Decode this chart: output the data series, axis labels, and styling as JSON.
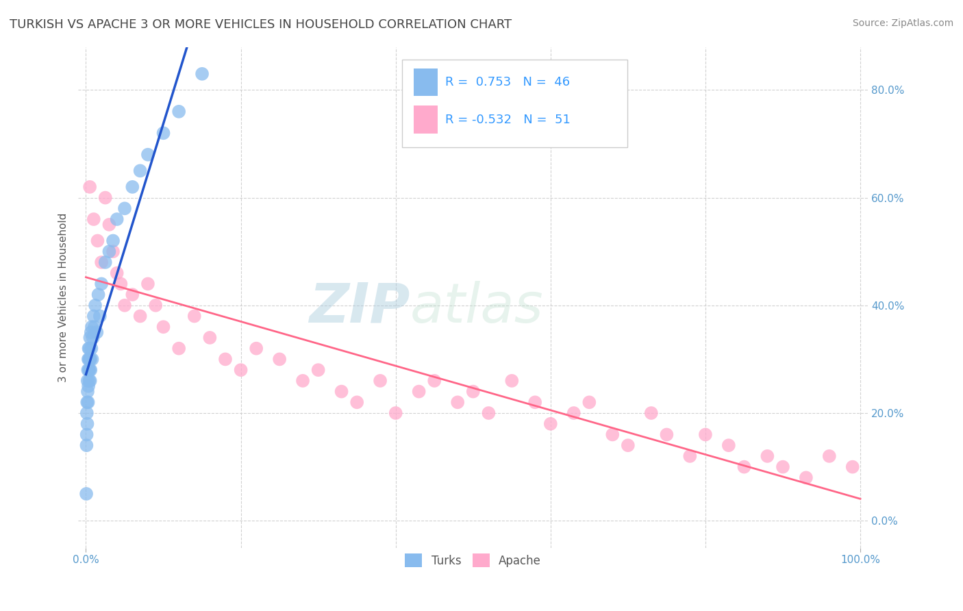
{
  "title": "TURKISH VS APACHE 3 OR MORE VEHICLES IN HOUSEHOLD CORRELATION CHART",
  "source_text": "Source: ZipAtlas.com",
  "ylabel": "3 or more Vehicles in Household",
  "xlim": [
    -1.0,
    101.0
  ],
  "ylim": [
    -5.0,
    88.0
  ],
  "xticks": [
    0.0,
    100.0
  ],
  "yticks": [
    0.0,
    20.0,
    40.0,
    60.0,
    80.0
  ],
  "xticklabels": [
    "0.0%",
    "100.0%"
  ],
  "yticklabels": [
    "0.0%",
    "20.0%",
    "40.0%",
    "60.0%",
    "80.0%"
  ],
  "turks_color": "#88BBEE",
  "apache_color": "#FFAACC",
  "turks_line_color": "#2255CC",
  "apache_line_color": "#FF6688",
  "turks_R": 0.753,
  "turks_N": 46,
  "apache_R": -0.532,
  "apache_N": 51,
  "legend_label_turks": "Turks",
  "legend_label_apache": "Apache",
  "watermark_zip": "ZIP",
  "watermark_atlas": "atlas",
  "background_color": "#ffffff",
  "grid_color": "#cccccc",
  "title_color": "#444444",
  "axis_label_color": "#555555",
  "tick_color": "#5599CC",
  "legend_R_color": "#3399FF",
  "turks_x": [
    0.05,
    0.08,
    0.1,
    0.12,
    0.15,
    0.18,
    0.2,
    0.22,
    0.25,
    0.28,
    0.3,
    0.32,
    0.35,
    0.38,
    0.4,
    0.42,
    0.45,
    0.48,
    0.5,
    0.52,
    0.55,
    0.58,
    0.6,
    0.65,
    0.7,
    0.75,
    0.8,
    0.9,
    1.0,
    1.1,
    1.2,
    1.4,
    1.6,
    1.8,
    2.0,
    2.5,
    3.0,
    3.5,
    4.0,
    5.0,
    6.0,
    7.0,
    8.0,
    10.0,
    12.0,
    15.0
  ],
  "turks_y": [
    5.0,
    14.0,
    16.0,
    20.0,
    22.0,
    18.0,
    26.0,
    24.0,
    28.0,
    22.0,
    30.0,
    25.0,
    32.0,
    28.0,
    30.0,
    26.0,
    32.0,
    28.0,
    30.0,
    34.0,
    26.0,
    30.0,
    28.0,
    35.0,
    32.0,
    36.0,
    30.0,
    34.0,
    38.0,
    36.0,
    40.0,
    35.0,
    42.0,
    38.0,
    44.0,
    48.0,
    50.0,
    52.0,
    56.0,
    58.0,
    62.0,
    65.0,
    68.0,
    72.0,
    76.0,
    83.0
  ],
  "apache_x": [
    0.5,
    1.0,
    1.5,
    2.0,
    2.5,
    3.0,
    3.5,
    4.0,
    4.5,
    5.0,
    6.0,
    7.0,
    8.0,
    9.0,
    10.0,
    12.0,
    14.0,
    16.0,
    18.0,
    20.0,
    22.0,
    25.0,
    28.0,
    30.0,
    33.0,
    35.0,
    38.0,
    40.0,
    43.0,
    45.0,
    48.0,
    50.0,
    52.0,
    55.0,
    58.0,
    60.0,
    63.0,
    65.0,
    68.0,
    70.0,
    73.0,
    75.0,
    78.0,
    80.0,
    83.0,
    85.0,
    88.0,
    90.0,
    93.0,
    96.0,
    99.0
  ],
  "apache_y": [
    62.0,
    56.0,
    52.0,
    48.0,
    60.0,
    55.0,
    50.0,
    46.0,
    44.0,
    40.0,
    42.0,
    38.0,
    44.0,
    40.0,
    36.0,
    32.0,
    38.0,
    34.0,
    30.0,
    28.0,
    32.0,
    30.0,
    26.0,
    28.0,
    24.0,
    22.0,
    26.0,
    20.0,
    24.0,
    26.0,
    22.0,
    24.0,
    20.0,
    26.0,
    22.0,
    18.0,
    20.0,
    22.0,
    16.0,
    14.0,
    20.0,
    16.0,
    12.0,
    16.0,
    14.0,
    10.0,
    12.0,
    10.0,
    8.0,
    12.0,
    10.0
  ]
}
